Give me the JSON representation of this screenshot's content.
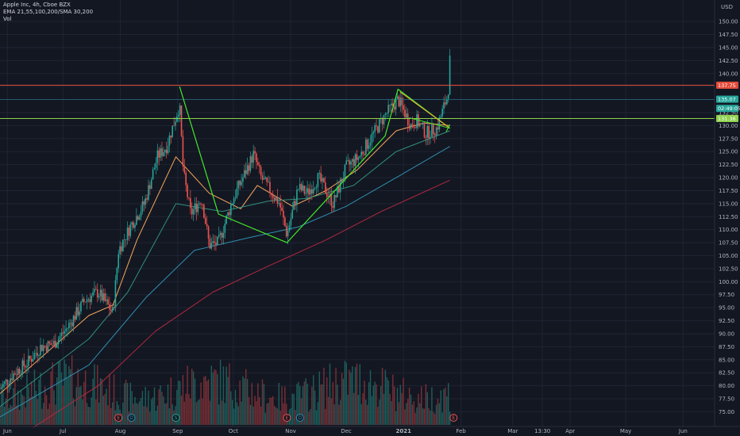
{
  "legend": {
    "title": "Apple Inc, 4h, Cboe BZX",
    "indicators": "EMA 21,55,100,200/SMA 30,200",
    "volume": "Vol"
  },
  "colors": {
    "background": "#131722",
    "grid": "#1f2433",
    "up": "#26a69a",
    "down": "#ef5350",
    "vol_up": "#1e5e5b",
    "vol_down": "#7a2f36",
    "resistance": "#e24b3b",
    "support": "#8fd14f",
    "pattern": "#46e82b",
    "cyan_line": "#2a6f86",
    "ema21": "#f7a75a",
    "ema55": "#2f8f7b",
    "ema100": "#2f8fb0",
    "ema200": "#b2293f",
    "triangle": "#f0b030"
  },
  "chart_data": {
    "type": "candlestick",
    "y_unit": "USD",
    "ylim": [
      74,
      152
    ],
    "y_ticks": [
      75,
      77.5,
      80,
      82.5,
      85,
      87.5,
      90,
      92.5,
      95,
      97.5,
      100,
      102.5,
      105,
      107.5,
      110,
      112.5,
      115,
      117.5,
      120,
      122.5,
      125,
      127.5,
      130,
      132.5,
      135,
      137.5,
      140,
      142.5,
      145,
      147.5,
      150
    ],
    "y_tick_labels": [
      "75.00",
      "77.50",
      "80.00",
      "82.50",
      "85.00",
      "87.50",
      "90.00",
      "92.50",
      "95.00",
      "97.50",
      "100.00",
      "102.50",
      "105.00",
      "107.50",
      "110.00",
      "112.50",
      "115.00",
      "117.50",
      "120.00",
      "122.50",
      "125.00",
      "127.50",
      "130.00",
      "132.50",
      "135.00",
      "137.50",
      "140.00",
      "142.50",
      "145.00",
      "147.50",
      "150.00"
    ],
    "x_time_domain": [
      "2020-05-28",
      "2021-06-18"
    ],
    "x_ticks": [
      {
        "date": "2020-06-01",
        "label": "Jun"
      },
      {
        "date": "2020-07-01",
        "label": "Jul"
      },
      {
        "date": "2020-08-01",
        "label": "Aug"
      },
      {
        "date": "2020-09-01",
        "label": "Sep"
      },
      {
        "date": "2020-10-01",
        "label": "Oct"
      },
      {
        "date": "2020-11-01",
        "label": "Nov"
      },
      {
        "date": "2020-12-01",
        "label": "Dec"
      },
      {
        "date": "2021-01-01",
        "label": "2021"
      },
      {
        "date": "2021-02-01",
        "label": "Feb"
      },
      {
        "date": "2021-03-01",
        "label": "Mar"
      },
      {
        "date": "2021-03-17",
        "label": "13:30"
      },
      {
        "date": "2021-04-01",
        "label": "Apr"
      },
      {
        "date": "2021-05-01",
        "label": "May"
      },
      {
        "date": "2021-06-01",
        "label": "Jun"
      }
    ],
    "price_path": [
      {
        "date": "2020-05-28",
        "price": 79.5
      },
      {
        "date": "2020-06-05",
        "price": 82.5
      },
      {
        "date": "2020-06-12",
        "price": 84.5
      },
      {
        "date": "2020-06-19",
        "price": 87.5
      },
      {
        "date": "2020-06-26",
        "price": 88.0
      },
      {
        "date": "2020-07-03",
        "price": 91.0
      },
      {
        "date": "2020-07-13",
        "price": 96.5
      },
      {
        "date": "2020-07-20",
        "price": 98.0
      },
      {
        "date": "2020-07-28",
        "price": 94.0
      },
      {
        "date": "2020-07-31",
        "price": 106.0
      },
      {
        "date": "2020-08-07",
        "price": 111.0
      },
      {
        "date": "2020-08-14",
        "price": 115.0
      },
      {
        "date": "2020-08-21",
        "price": 124.0
      },
      {
        "date": "2020-08-26",
        "price": 126.0
      },
      {
        "date": "2020-09-02",
        "price": 134.0
      },
      {
        "date": "2020-09-04",
        "price": 121.0
      },
      {
        "date": "2020-09-08",
        "price": 113.0
      },
      {
        "date": "2020-09-14",
        "price": 116.0
      },
      {
        "date": "2020-09-18",
        "price": 107.0
      },
      {
        "date": "2020-09-23",
        "price": 107.5
      },
      {
        "date": "2020-10-01",
        "price": 116.0
      },
      {
        "date": "2020-10-12",
        "price": 124.5
      },
      {
        "date": "2020-10-16",
        "price": 120.0
      },
      {
        "date": "2020-10-26",
        "price": 115.0
      },
      {
        "date": "2020-10-30",
        "price": 109.0
      },
      {
        "date": "2020-11-05",
        "price": 118.0
      },
      {
        "date": "2020-11-10",
        "price": 117.0
      },
      {
        "date": "2020-11-16",
        "price": 120.0
      },
      {
        "date": "2020-11-24",
        "price": 115.0
      },
      {
        "date": "2020-12-01",
        "price": 122.0
      },
      {
        "date": "2020-12-08",
        "price": 124.0
      },
      {
        "date": "2020-12-15",
        "price": 128.0
      },
      {
        "date": "2020-12-22",
        "price": 132.0
      },
      {
        "date": "2020-12-29",
        "price": 135.0
      },
      {
        "date": "2021-01-05",
        "price": 130.0
      },
      {
        "date": "2021-01-08",
        "price": 131.0
      },
      {
        "date": "2021-01-13",
        "price": 128.5
      },
      {
        "date": "2021-01-19",
        "price": 129.5
      },
      {
        "date": "2021-01-25",
        "price": 136.0
      },
      {
        "date": "2021-01-26",
        "price": 142.5
      }
    ],
    "ma_series": [
      {
        "id": "ema21",
        "points": [
          {
            "date": "2020-05-28",
            "price": 78.5
          },
          {
            "date": "2020-07-15",
            "price": 93.5
          },
          {
            "date": "2020-07-28",
            "price": 95.5
          },
          {
            "date": "2020-08-10",
            "price": 108.0
          },
          {
            "date": "2020-08-31",
            "price": 124.0
          },
          {
            "date": "2020-09-18",
            "price": 117.0
          },
          {
            "date": "2020-10-05",
            "price": 114.0
          },
          {
            "date": "2020-10-14",
            "price": 118.5
          },
          {
            "date": "2020-11-02",
            "price": 114.5
          },
          {
            "date": "2020-11-20",
            "price": 117.5
          },
          {
            "date": "2020-12-07",
            "price": 121.5
          },
          {
            "date": "2020-12-28",
            "price": 129.0
          },
          {
            "date": "2021-01-12",
            "price": 130.5
          },
          {
            "date": "2021-01-26",
            "price": 130.0
          }
        ]
      },
      {
        "id": "ema55",
        "points": [
          {
            "date": "2020-05-28",
            "price": 76.0
          },
          {
            "date": "2020-07-15",
            "price": 89.0
          },
          {
            "date": "2020-08-05",
            "price": 98.0
          },
          {
            "date": "2020-08-31",
            "price": 115.0
          },
          {
            "date": "2020-09-25",
            "price": 113.5
          },
          {
            "date": "2020-10-20",
            "price": 115.5
          },
          {
            "date": "2020-11-10",
            "price": 116.0
          },
          {
            "date": "2020-12-05",
            "price": 118.5
          },
          {
            "date": "2020-12-28",
            "price": 125.0
          },
          {
            "date": "2021-01-26",
            "price": 129.0
          }
        ]
      },
      {
        "id": "ema100",
        "points": [
          {
            "date": "2020-05-28",
            "price": 74.0
          },
          {
            "date": "2020-07-15",
            "price": 84.0
          },
          {
            "date": "2020-08-15",
            "price": 97.0
          },
          {
            "date": "2020-09-10",
            "price": 106.0
          },
          {
            "date": "2020-10-10",
            "price": 108.5
          },
          {
            "date": "2020-11-05",
            "price": 110.5
          },
          {
            "date": "2020-12-01",
            "price": 114.5
          },
          {
            "date": "2020-12-28",
            "price": 120.0
          },
          {
            "date": "2021-01-26",
            "price": 126.0
          }
        ]
      },
      {
        "id": "ema200",
        "points": [
          {
            "date": "2020-06-15",
            "price": 72.0
          },
          {
            "date": "2020-07-20",
            "price": 80.0
          },
          {
            "date": "2020-08-20",
            "price": 90.5
          },
          {
            "date": "2020-09-20",
            "price": 98.0
          },
          {
            "date": "2020-10-20",
            "price": 103.0
          },
          {
            "date": "2020-11-20",
            "price": 108.0
          },
          {
            "date": "2020-12-20",
            "price": 113.5
          },
          {
            "date": "2021-01-26",
            "price": 119.5
          }
        ]
      }
    ],
    "horizontal_lines": [
      {
        "id": "resistance",
        "price": 137.75,
        "label": "137.75"
      },
      {
        "id": "cyan",
        "price": 135.0
      },
      {
        "id": "support",
        "price": 131.36,
        "label": "131.36"
      }
    ],
    "price_tags": [
      {
        "id": "last",
        "price": 135.07,
        "label": "135.07"
      },
      {
        "id": "countdown",
        "price": 133.3,
        "label": "02:49:05"
      }
    ],
    "pattern_lines": [
      {
        "date": "2020-09-02",
        "price": 137.5
      },
      {
        "date": "2020-09-23",
        "price": 113.0
      },
      {
        "date": "2020-10-30",
        "price": 107.5
      },
      {
        "date": "2020-12-22",
        "price": 128.0
      },
      {
        "date": "2020-12-29",
        "price": 137.0
      },
      {
        "date": "2021-01-26",
        "price": 129.5
      }
    ],
    "triangle": [
      [
        {
          "date": "2020-12-30",
          "price": 136.5
        },
        {
          "date": "2021-01-26",
          "price": 129.5
        }
      ],
      [
        {
          "date": "2021-01-04",
          "price": 131.5
        },
        {
          "date": "2021-01-26",
          "price": 129.5
        }
      ],
      [
        {
          "date": "2021-01-24",
          "price": 128.8
        },
        {
          "date": "2021-01-26",
          "price": 130.2
        }
      ]
    ],
    "events": [
      {
        "date": "2020-07-31",
        "label": "E",
        "color": "#ef5350"
      },
      {
        "date": "2020-08-07",
        "label": "D",
        "color": "#2f8fb0"
      },
      {
        "date": "2020-08-31",
        "label": "S",
        "color": "#26a69a"
      },
      {
        "date": "2020-10-30",
        "label": "E",
        "color": "#ef5350"
      },
      {
        "date": "2020-11-06",
        "label": "D",
        "color": "#2f8fb0"
      },
      {
        "date": "2021-01-28",
        "label": "E",
        "color": "#ef5350"
      }
    ],
    "currency_label": "USD"
  }
}
